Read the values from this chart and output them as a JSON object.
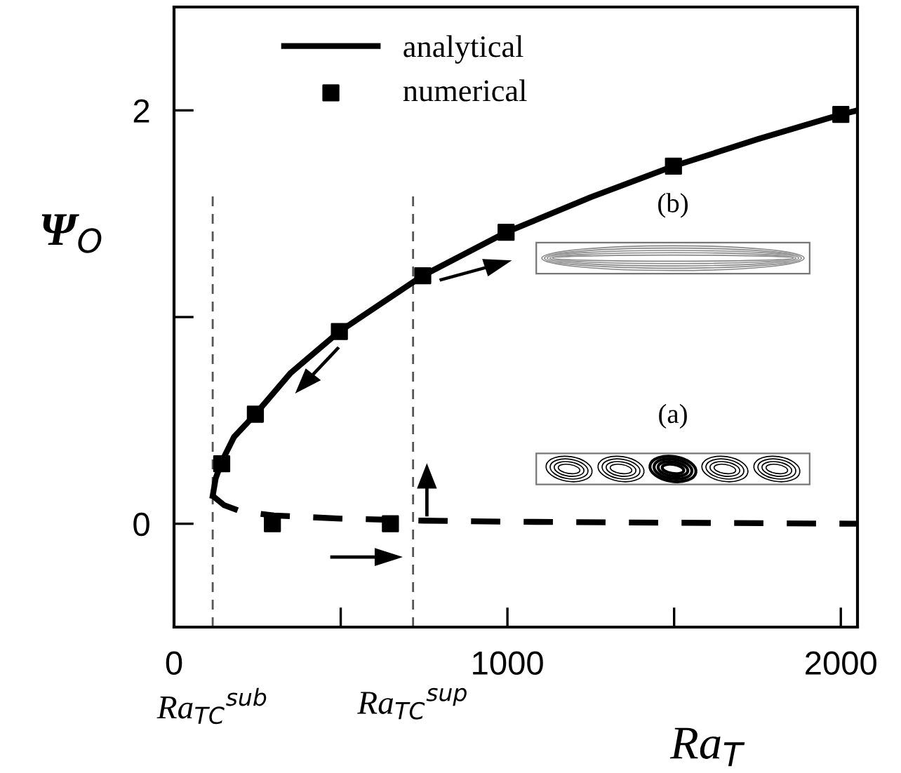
{
  "chart_data": {
    "type": "line",
    "xlabel": "Ra$_{T}$",
    "ylabel": "Ψ$_{O}$",
    "xlim": [
      0,
      2050
    ],
    "ylim": [
      -0.5,
      2.5
    ],
    "xticks": [
      0,
      {
        "value": 500,
        "label": null
      },
      1000,
      {
        "value": 1500,
        "label": null
      },
      2000
    ],
    "yticks": [
      0,
      {
        "value": 1,
        "label": null
      },
      2
    ],
    "grid": false,
    "legend": "top left",
    "series": [
      {
        "name": "analytical",
        "type": "line",
        "color": "#000000",
        "line_style": "solid",
        "marker": "none",
        "x": [
          116,
          125,
          143,
          180,
          244,
          350,
          496,
          746,
          996,
          1250,
          1498,
          1750,
          2000,
          2050
        ],
        "values": [
          0.135,
          0.22,
          0.3,
          0.42,
          0.53,
          0.73,
          0.93,
          1.2,
          1.41,
          1.58,
          1.73,
          1.86,
          1.98,
          2.0
        ]
      },
      {
        "type": "line",
        "color": "#000000",
        "line_style": "dashed",
        "marker": "none",
        "x": [
          116,
          150,
          200,
          300,
          500,
          750,
          1000,
          1500,
          2050
        ],
        "values": [
          0.135,
          0.09,
          0.06,
          0.04,
          0.025,
          0.015,
          0.01,
          0.005,
          0.0
        ]
      },
      {
        "name": "numerical",
        "type": "scatter",
        "color": "#000000",
        "marker": "square",
        "x": [
          143,
          244,
          496,
          746,
          996,
          1498,
          2000,
          295,
          649
        ],
        "values": [
          0.29,
          0.53,
          0.93,
          1.2,
          1.41,
          1.73,
          1.98,
          0,
          0
        ]
      }
    ],
    "ref_lines": [
      {
        "axis": "x",
        "value": 116,
        "label": "Ra$_{TC}$$^{sub}$",
        "color": "#555555",
        "line_style": "dashed"
      },
      {
        "axis": "x",
        "value": 717,
        "label": "Ra$_{TC}$$^{sup}$",
        "color": "#555555",
        "line_style": "dashed"
      }
    ],
    "annotations": [
      "(b)",
      "(a)"
    ]
  }
}
